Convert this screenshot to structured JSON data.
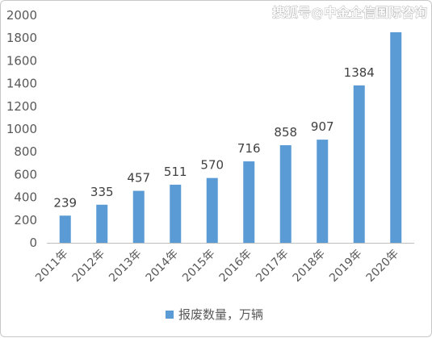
{
  "watermark": "搜狐号@中金企信国际咨询",
  "chart_data": {
    "type": "bar",
    "categories": [
      "2011年",
      "2012年",
      "2013年",
      "2014年",
      "2015年",
      "2016年",
      "2017年",
      "2018年",
      "2019年",
      "2020年"
    ],
    "series": [
      {
        "name": "报废数量，万辆",
        "values": [
          239,
          335,
          457,
          511,
          570,
          716,
          858,
          907,
          1384,
          1851
        ],
        "color": "#5b9bd5"
      }
    ],
    "data_labels": [
      "239",
      "335",
      "457",
      "511",
      "570",
      "716",
      "858",
      "907",
      "1384",
      ""
    ],
    "yticks": [
      "0",
      "200",
      "400",
      "600",
      "800",
      "1000",
      "1200",
      "1400",
      "1600",
      "1800",
      "2000"
    ],
    "ylim": [
      0,
      2000
    ],
    "grid": false,
    "legend_position": "bottom",
    "title": "",
    "xlabel": "",
    "ylabel": ""
  }
}
